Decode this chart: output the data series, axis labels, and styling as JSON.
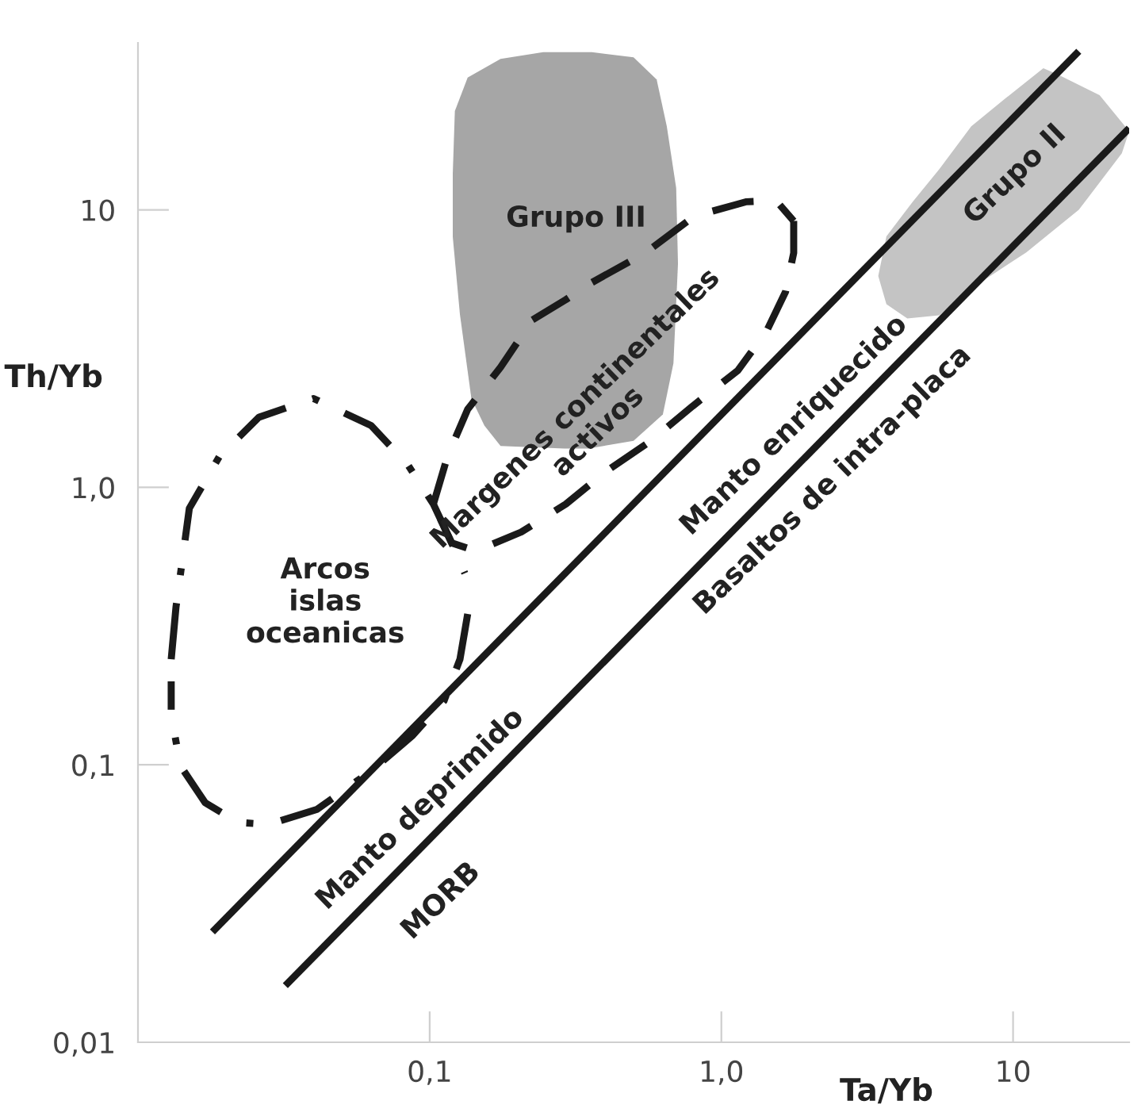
{
  "chart_data": {
    "type": "line",
    "xlabel": "Ta/Yb",
    "ylabel": "Th/Yb",
    "log": "xy",
    "xlim": [
      0.01,
      25
    ],
    "ylim": [
      0.01,
      40
    ],
    "xticks": [
      {
        "value": 0.1,
        "label": "0,1"
      },
      {
        "value": 1,
        "label": "1,0"
      },
      10
    ],
    "yticks": [
      {
        "value": 0.01,
        "label": "0,01"
      },
      {
        "value": 0.1,
        "label": "0,1"
      },
      {
        "value": 1,
        "label": "1,0"
      },
      10
    ],
    "grid": false,
    "legend": false,
    "marker": "none",
    "series": [
      {
        "type": "area",
        "color": "#a6a6a6",
        "x": [
          0.135,
          0.175,
          0.245,
          0.36,
          0.5,
          0.6,
          0.65,
          0.7,
          0.71,
          0.685,
          0.63,
          0.5,
          0.35,
          0.29,
          0.175,
          0.154,
          0.139,
          0.127,
          0.12,
          0.12,
          0.122
        ],
        "values": [
          30,
          35,
          37,
          37,
          35.5,
          29.5,
          20,
          12,
          6.4,
          2.8,
          1.83,
          1.47,
          1.38,
          1.38,
          1.41,
          1.67,
          2.09,
          4.2,
          8,
          13.5,
          22.7
        ]
      },
      {
        "type": "area",
        "color": "#c4c4c4",
        "x": [
          3.45,
          3.68,
          4.34,
          5.58,
          7.19,
          11.1,
          16.8,
          23.6,
          25,
          19.8,
          14.3,
          12.7,
          9.27,
          7.19,
          5.58,
          4.56,
          3.68
        ],
        "values": [
          5.78,
          4.57,
          4.06,
          4.17,
          5.21,
          7.03,
          10,
          16,
          19.2,
          25.9,
          30.7,
          32.4,
          24.9,
          20,
          14,
          10.8,
          8.02
        ]
      },
      {
        "color": "#1a1a1a",
        "line_style": "dashdot",
        "x": [
          0.013,
          0.0135,
          0.015,
          0.019,
          0.026,
          0.04,
          0.063,
          0.084,
          0.103,
          0.119,
          0.132
        ],
        "values": [
          0.24,
          0.37,
          0.84,
          1.29,
          1.79,
          2.09,
          1.67,
          1.21,
          0.87,
          0.63,
          0.49
        ]
      },
      {
        "color": "#1a1a1a",
        "line_style": "dashdot",
        "x": [
          0.135,
          0.127,
          0.112,
          0.087,
          0.063,
          0.041,
          0.028,
          0.022,
          0.017,
          0.014,
          0.013,
          0.013
        ],
        "values": [
          0.35,
          0.24,
          0.17,
          0.127,
          0.095,
          0.069,
          0.061,
          0.062,
          0.073,
          0.099,
          0.15,
          0.2
        ]
      },
      {
        "color": "#1a1a1a",
        "line_style": "dashed",
        "x": [
          0.103,
          0.115,
          0.135,
          0.175,
          0.225,
          0.293,
          0.354,
          0.552,
          0.807,
          1.22,
          1.54,
          1.77
        ],
        "values": [
          0.87,
          1.29,
          1.91,
          2.71,
          4.01,
          4.75,
          5.42,
          7.03,
          9.49,
          10.7,
          10.8,
          9.12
        ]
      },
      {
        "color": "#1a1a1a",
        "line_style": "dashed",
        "x": [
          1.77,
          1.77,
          1.66,
          1.43,
          1.14,
          0.796,
          0.573,
          0.397,
          0.293,
          0.206,
          0.144,
          0.119,
          0.103
        ],
        "values": [
          9.12,
          7.0,
          5.07,
          3.66,
          2.64,
          1.96,
          1.47,
          1.13,
          0.87,
          0.69,
          0.59,
          0.63,
          0.87
        ]
      },
      {
        "color": "#1a1a1a",
        "line_style": "solid",
        "x": [
          0.018,
          16.8
        ],
        "values": [
          0.025,
          37.3
        ]
      },
      {
        "color": "#1a1a1a",
        "line_style": "solid",
        "x": [
          0.032,
          25
        ],
        "values": [
          0.016,
          19.7
        ]
      }
    ],
    "annotations": [
      "Grupo III",
      "Grupo II",
      "Margenes continentales\nactivos",
      "Arcos\nislas\noceanicas",
      "Manto deprimido",
      "MORB",
      "Manto enriquecido",
      "Basaltos de intra-placa"
    ]
  }
}
